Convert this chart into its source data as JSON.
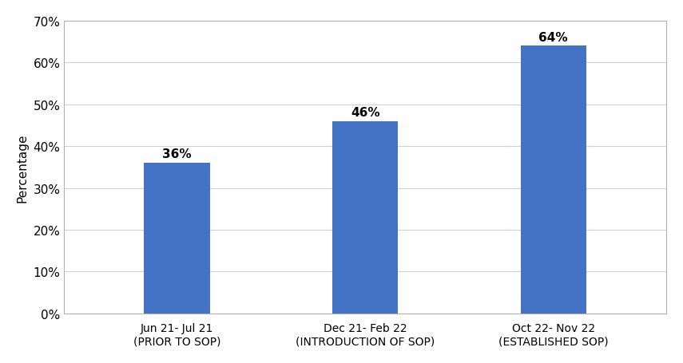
{
  "categories": [
    "Jun 21- Jul 21\n(PRIOR TO SOP)",
    "Dec 21- Feb 22\n(INTRODUCTION OF SOP)",
    "Oct 22- Nov 22\n(ESTABLISHED SOP)"
  ],
  "values": [
    36,
    46,
    64
  ],
  "bar_color": "#4472C4",
  "ylabel": "Percentage",
  "ylim": [
    0,
    70
  ],
  "yticks": [
    0,
    10,
    20,
    30,
    40,
    50,
    60,
    70
  ],
  "ytick_labels": [
    "0%",
    "10%",
    "20%",
    "30%",
    "40%",
    "50%",
    "60%",
    "70%"
  ],
  "tick_fontsize": 11,
  "ylabel_fontsize": 11,
  "bar_label_fontsize": 11,
  "xtick_fontsize": 10,
  "background_color": "#ffffff",
  "grid_color": "#d0d0d0",
  "bar_width": 0.35,
  "border_color": "#b0b0b0"
}
